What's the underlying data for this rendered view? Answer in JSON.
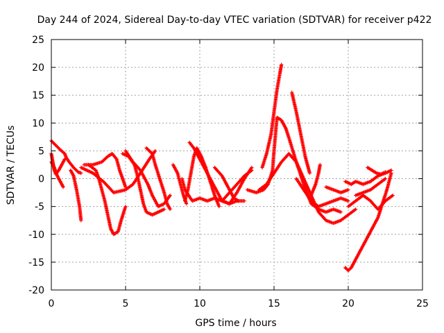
{
  "chart_data": {
    "type": "scatter",
    "title": "Day 244 of 2024, Sidereal Day-to-day VTEC variation (SDTVAR) for receiver p422",
    "xlabel": "GPS time / hours",
    "ylabel": "SDTVAR / TECUs",
    "xlim": [
      0,
      25
    ],
    "ylim": [
      -20,
      25
    ],
    "xticks": [
      "0",
      "5",
      "10",
      "15",
      "20",
      "25"
    ],
    "yticks": [
      "25",
      "20",
      "15",
      "10",
      "5",
      "0",
      "-5",
      "-10",
      "-15",
      "-20"
    ],
    "grid": true,
    "marker": "plus",
    "color": "#ff0000",
    "series": [
      {
        "points": [
          [
            0.0,
            6.8
          ],
          [
            0.3,
            6.0
          ],
          [
            0.6,
            5.2
          ],
          [
            0.9,
            4.5
          ],
          [
            1.0,
            3.8
          ],
          [
            1.2,
            3.0
          ],
          [
            1.5,
            2.0
          ],
          [
            1.8,
            1.2
          ],
          [
            2.0,
            1.0
          ]
        ]
      },
      {
        "points": [
          [
            0.0,
            4.5
          ],
          [
            0.1,
            3.0
          ],
          [
            0.2,
            1.5
          ],
          [
            0.3,
            0.8
          ],
          [
            0.5,
            1.5
          ],
          [
            0.7,
            2.5
          ],
          [
            0.9,
            3.5
          ]
        ]
      },
      {
        "points": [
          [
            0.0,
            3.0
          ],
          [
            0.2,
            2.0
          ],
          [
            0.4,
            0.5
          ],
          [
            0.6,
            -0.5
          ],
          [
            0.8,
            -1.5
          ]
        ]
      },
      {
        "points": [
          [
            1.3,
            1.5
          ],
          [
            1.5,
            0.5
          ],
          [
            1.7,
            -2.0
          ],
          [
            1.9,
            -5.0
          ],
          [
            2.0,
            -7.5
          ]
        ]
      },
      {
        "points": [
          [
            2.2,
            2.5
          ],
          [
            2.8,
            2.5
          ],
          [
            3.4,
            3.0
          ],
          [
            3.8,
            4.0
          ],
          [
            4.1,
            4.5
          ],
          [
            4.4,
            3.5
          ],
          [
            4.6,
            1.5
          ],
          [
            4.8,
            0.0
          ],
          [
            5.0,
            -1.5
          ]
        ]
      },
      {
        "points": [
          [
            2.5,
            2.5
          ],
          [
            3.0,
            1.5
          ],
          [
            3.2,
            0.0
          ],
          [
            3.4,
            -2.0
          ],
          [
            3.6,
            -4.0
          ],
          [
            3.8,
            -6.5
          ],
          [
            4.0,
            -9.0
          ],
          [
            4.2,
            -10.0
          ],
          [
            4.5,
            -9.5
          ],
          [
            4.7,
            -7.5
          ],
          [
            5.0,
            -5.0
          ]
        ]
      },
      {
        "points": [
          [
            2.0,
            2.0
          ],
          [
            2.8,
            1.0
          ],
          [
            3.5,
            -0.5
          ],
          [
            4.2,
            -2.5
          ],
          [
            5.0,
            -2.0
          ],
          [
            5.5,
            -1.0
          ],
          [
            6.0,
            1.0
          ],
          [
            6.6,
            3.5
          ],
          [
            7.0,
            5.0
          ]
        ]
      },
      {
        "points": [
          [
            4.8,
            4.5
          ],
          [
            5.2,
            4.0
          ],
          [
            5.6,
            2.5
          ],
          [
            5.8,
            0.5
          ],
          [
            6.0,
            -2.0
          ],
          [
            6.2,
            -4.5
          ],
          [
            6.4,
            -6.0
          ],
          [
            6.8,
            -6.5
          ],
          [
            7.2,
            -6.0
          ],
          [
            7.6,
            -5.5
          ]
        ]
      },
      {
        "points": [
          [
            5.0,
            5.0
          ],
          [
            5.5,
            3.0
          ],
          [
            6.0,
            1.5
          ],
          [
            6.5,
            -1.0
          ],
          [
            6.8,
            -3.0
          ],
          [
            7.2,
            -5.0
          ],
          [
            7.6,
            -4.5
          ],
          [
            8.0,
            -3.0
          ]
        ]
      },
      {
        "points": [
          [
            6.4,
            5.5
          ],
          [
            6.8,
            4.5
          ],
          [
            7.0,
            2.5
          ],
          [
            7.3,
            0.0
          ],
          [
            7.6,
            -2.5
          ],
          [
            7.8,
            -4.5
          ],
          [
            8.0,
            -5.5
          ]
        ]
      },
      {
        "points": [
          [
            8.2,
            2.5
          ],
          [
            8.5,
            1.0
          ],
          [
            8.7,
            -1.0
          ],
          [
            8.9,
            -3.0
          ],
          [
            9.1,
            -4.5
          ]
        ]
      },
      {
        "points": [
          [
            8.8,
            0.0
          ],
          [
            9.0,
            -2.0
          ],
          [
            9.5,
            -4.0
          ],
          [
            10.0,
            -3.5
          ],
          [
            10.5,
            -4.0
          ],
          [
            11.0,
            -3.5
          ],
          [
            11.5,
            -4.0
          ],
          [
            12.0,
            -4.5
          ],
          [
            12.5,
            -4.0
          ],
          [
            13.0,
            -4.0
          ]
        ]
      },
      {
        "points": [
          [
            9.0,
            -4.0
          ],
          [
            9.2,
            -2.0
          ],
          [
            9.4,
            1.0
          ],
          [
            9.6,
            4.0
          ],
          [
            9.8,
            5.5
          ],
          [
            10.1,
            4.0
          ],
          [
            10.4,
            2.0
          ],
          [
            10.7,
            -0.5
          ],
          [
            11.0,
            -3.0
          ],
          [
            11.3,
            -5.0
          ]
        ]
      },
      {
        "points": [
          [
            9.3,
            6.5
          ],
          [
            9.6,
            5.5
          ],
          [
            10.0,
            3.5
          ],
          [
            10.5,
            1.0
          ],
          [
            11.0,
            -1.5
          ],
          [
            11.5,
            -4.0
          ],
          [
            12.0,
            -4.5
          ],
          [
            12.5,
            -2.5
          ],
          [
            13.0,
            0.0
          ],
          [
            13.5,
            2.0
          ]
        ]
      },
      {
        "points": [
          [
            11.0,
            2.0
          ],
          [
            11.5,
            0.5
          ],
          [
            12.0,
            -2.0
          ],
          [
            12.3,
            -3.5
          ],
          [
            12.6,
            -4.0
          ]
        ]
      },
      {
        "points": [
          [
            11.5,
            -4.0
          ],
          [
            12.0,
            -2.5
          ],
          [
            12.5,
            -1.0
          ],
          [
            13.0,
            0.5
          ],
          [
            13.5,
            1.5
          ]
        ]
      },
      {
        "points": [
          [
            13.2,
            -2.0
          ],
          [
            13.8,
            -2.5
          ],
          [
            14.3,
            -2.0
          ],
          [
            14.6,
            -1.0
          ],
          [
            14.9,
            1.5
          ],
          [
            15.0,
            5.0
          ],
          [
            15.2,
            11.0
          ],
          [
            15.5,
            10.5
          ],
          [
            15.8,
            9.0
          ],
          [
            16.1,
            6.5
          ],
          [
            16.5,
            3.0
          ],
          [
            17.0,
            -1.0
          ],
          [
            17.5,
            -4.5
          ],
          [
            18.0,
            -5.5
          ],
          [
            18.5,
            -6.0
          ],
          [
            19.0,
            -5.5
          ],
          [
            19.5,
            -6.0
          ]
        ]
      },
      {
        "points": [
          [
            14.2,
            2.0
          ],
          [
            14.5,
            4.5
          ],
          [
            14.8,
            8.0
          ],
          [
            15.0,
            12.0
          ],
          [
            15.2,
            16.0
          ],
          [
            15.4,
            19.0
          ],
          [
            15.5,
            20.5
          ]
        ]
      },
      {
        "points": [
          [
            14.0,
            -2.0
          ],
          [
            14.5,
            -1.0
          ],
          [
            15.0,
            1.0
          ],
          [
            15.5,
            3.0
          ],
          [
            16.0,
            4.5
          ],
          [
            16.5,
            3.0
          ],
          [
            17.0,
            0.0
          ],
          [
            17.5,
            -3.0
          ],
          [
            18.0,
            -6.0
          ],
          [
            18.5,
            -7.5
          ],
          [
            19.0,
            -8.0
          ],
          [
            19.5,
            -7.5
          ],
          [
            20.0,
            -6.5
          ],
          [
            20.5,
            -5.5
          ]
        ]
      },
      {
        "points": [
          [
            16.2,
            15.5
          ],
          [
            16.5,
            12.0
          ],
          [
            16.8,
            8.0
          ],
          [
            17.1,
            4.0
          ],
          [
            17.4,
            1.0
          ]
        ]
      },
      {
        "points": [
          [
            16.5,
            0.0
          ],
          [
            17.0,
            -2.0
          ],
          [
            17.5,
            -4.0
          ],
          [
            18.0,
            -5.0
          ],
          [
            18.5,
            -4.5
          ],
          [
            19.0,
            -4.0
          ],
          [
            19.5,
            -3.5
          ],
          [
            20.0,
            -4.0
          ]
        ]
      },
      {
        "points": [
          [
            17.5,
            -3.0
          ],
          [
            17.8,
            -1.0
          ],
          [
            18.0,
            1.0
          ],
          [
            18.1,
            2.5
          ]
        ]
      },
      {
        "points": [
          [
            18.5,
            -1.5
          ],
          [
            19.0,
            -2.0
          ],
          [
            19.5,
            -2.5
          ],
          [
            20.0,
            -2.0
          ]
        ]
      },
      {
        "points": [
          [
            19.8,
            -16.0
          ],
          [
            20.0,
            -16.5
          ],
          [
            20.2,
            -16.0
          ],
          [
            20.5,
            -14.5
          ],
          [
            21.0,
            -12.0
          ],
          [
            21.5,
            -9.5
          ],
          [
            22.0,
            -7.0
          ],
          [
            22.3,
            -4.5
          ],
          [
            22.6,
            -2.0
          ],
          [
            22.8,
            0.0
          ],
          [
            22.9,
            1.0
          ]
        ]
      },
      {
        "points": [
          [
            19.8,
            -0.5
          ],
          [
            20.2,
            -1.0
          ],
          [
            20.5,
            -0.5
          ],
          [
            21.0,
            -1.0
          ],
          [
            21.5,
            -0.5
          ],
          [
            22.0,
            0.5
          ],
          [
            22.5,
            1.0
          ],
          [
            22.9,
            1.5
          ]
        ]
      },
      {
        "points": [
          [
            20.0,
            -5.0
          ],
          [
            20.5,
            -4.0
          ],
          [
            21.0,
            -3.0
          ],
          [
            21.5,
            -4.0
          ],
          [
            22.0,
            -5.5
          ],
          [
            22.5,
            -4.0
          ],
          [
            23.0,
            -3.0
          ]
        ]
      },
      {
        "points": [
          [
            21.3,
            2.0
          ],
          [
            21.6,
            1.5
          ],
          [
            21.9,
            1.0
          ],
          [
            22.2,
            0.8
          ],
          [
            22.5,
            1.2
          ]
        ]
      },
      {
        "points": [
          [
            20.5,
            -3.0
          ],
          [
            21.0,
            -2.5
          ],
          [
            21.5,
            -2.0
          ],
          [
            22.0,
            -1.0
          ],
          [
            22.5,
            0.0
          ]
        ]
      }
    ]
  }
}
